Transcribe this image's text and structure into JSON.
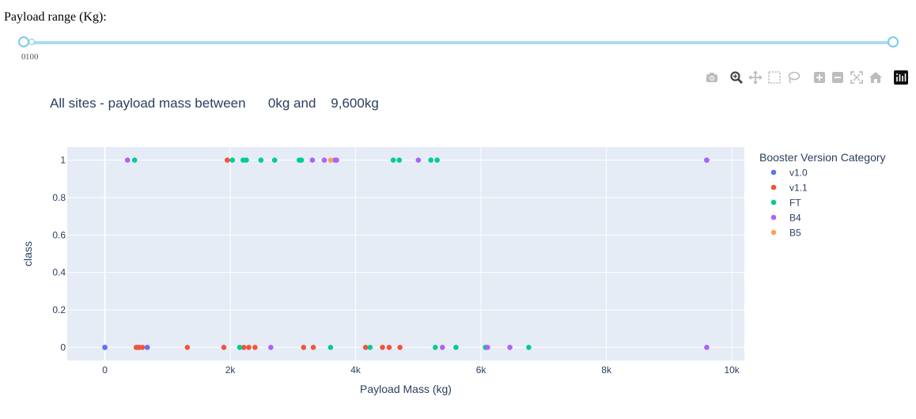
{
  "slider": {
    "label": "Payload range (Kg):",
    "min_mark": "0",
    "max_mark": "100",
    "value_low": 0,
    "value_high": 10000,
    "track_color": "#a9dcf3",
    "handle_color": "#7ccbed"
  },
  "modebar": {
    "buttons": [
      "camera-icon",
      "zoom-icon",
      "pan-icon",
      "box-select-icon",
      "lasso-select-icon",
      "zoom-in-icon",
      "zoom-out-icon",
      "autoscale-icon",
      "reset-axes-icon",
      "plotly-logo-icon"
    ]
  },
  "chart_data": {
    "type": "scatter",
    "title": "All sites - payload mass between      0kg and    9,600kg",
    "xlabel": "Payload Mass (kg)",
    "ylabel": "class",
    "xlim": [
      -600,
      10200
    ],
    "ylim": [
      -0.07,
      1.07
    ],
    "x_ticks": [
      0,
      2000,
      4000,
      6000,
      8000,
      10000
    ],
    "x_tick_labels": [
      "0",
      "2k",
      "4k",
      "6k",
      "8k",
      "10k"
    ],
    "y_ticks": [
      0,
      0.2,
      0.4,
      0.6,
      0.8,
      1
    ],
    "y_tick_labels": [
      "0",
      "0.2",
      "0.4",
      "0.6",
      "0.8",
      "1"
    ],
    "grid": true,
    "plot_bgcolor": "#e5ecf6",
    "legend_title": "Booster Version Category",
    "legend_position": "right",
    "series": [
      {
        "name": "v1.0",
        "color": "#636efa",
        "points": [
          [
            0,
            0
          ],
          [
            0,
            0
          ],
          [
            525,
            0
          ],
          [
            677,
            0
          ],
          [
            9600,
            1
          ]
        ]
      },
      {
        "name": "v1.1",
        "color": "#ef553b",
        "points": [
          [
            500,
            0
          ],
          [
            550,
            0
          ],
          [
            600,
            0
          ],
          [
            1316,
            0
          ],
          [
            1898,
            0
          ],
          [
            1952,
            1
          ],
          [
            2216,
            0
          ],
          [
            2296,
            0
          ],
          [
            2395,
            0
          ],
          [
            3170,
            0
          ],
          [
            3325,
            0
          ],
          [
            4159,
            0
          ],
          [
            4428,
            0
          ],
          [
            4535,
            0
          ],
          [
            4707,
            0
          ]
        ]
      },
      {
        "name": "FT",
        "color": "#00cc96",
        "points": [
          [
            475,
            1
          ],
          [
            2034,
            1
          ],
          [
            2150,
            0
          ],
          [
            2205,
            1
          ],
          [
            2257,
            1
          ],
          [
            2490,
            1
          ],
          [
            2708,
            1
          ],
          [
            3100,
            1
          ],
          [
            3136,
            1
          ],
          [
            3600,
            0
          ],
          [
            4230,
            0
          ],
          [
            4600,
            1
          ],
          [
            4696,
            1
          ],
          [
            5200,
            1
          ],
          [
            5271,
            0
          ],
          [
            5300,
            1
          ],
          [
            5600,
            0
          ],
          [
            6070,
            0
          ],
          [
            6761,
            0
          ]
        ]
      },
      {
        "name": "B4",
        "color": "#ab63fa",
        "points": [
          [
            362,
            1
          ],
          [
            2647,
            0
          ],
          [
            3310,
            1
          ],
          [
            3500,
            1
          ],
          [
            3669,
            1
          ],
          [
            3696,
            1
          ],
          [
            5000,
            1
          ],
          [
            5384,
            0
          ],
          [
            6104,
            0
          ],
          [
            6460,
            0
          ],
          [
            9600,
            0
          ],
          [
            9600,
            1
          ]
        ]
      },
      {
        "name": "B5",
        "color": "#ffa15a",
        "points": [
          [
            3600,
            1
          ]
        ]
      }
    ]
  }
}
